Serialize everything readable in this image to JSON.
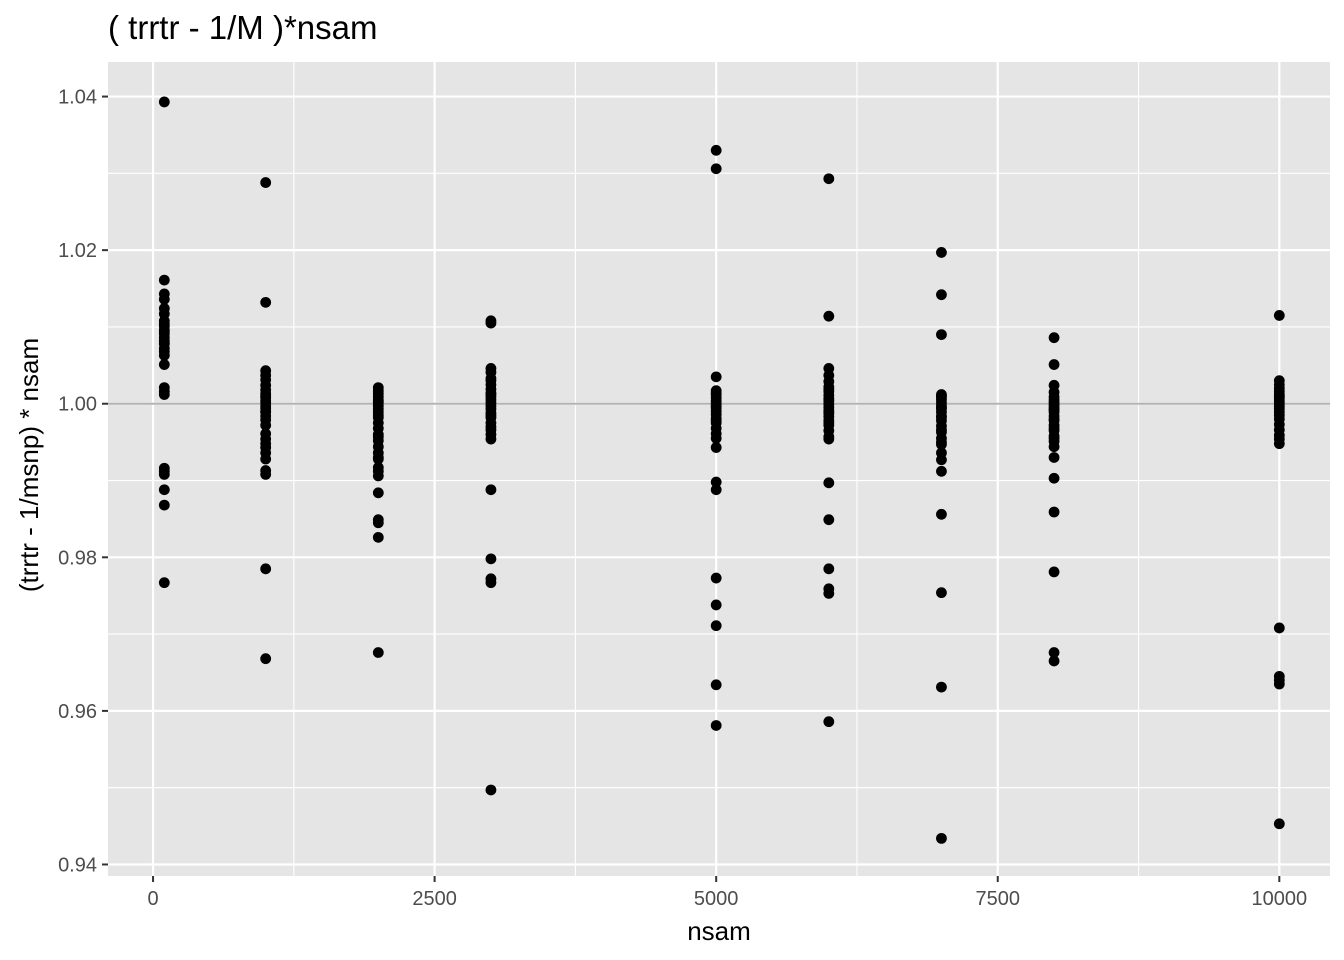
{
  "chart_data": {
    "type": "scatter",
    "title": "( trrtr - 1/M )*nsam",
    "xlabel": "nsam",
    "ylabel": "(trrtr - 1/msnp) * nsam",
    "xlim": [
      -400,
      10450
    ],
    "ylim": [
      0.9385,
      1.0445
    ],
    "x_ticks": [
      {
        "value": 0,
        "label": "0"
      },
      {
        "value": 2500,
        "label": "2500"
      },
      {
        "value": 5000,
        "label": "5000"
      },
      {
        "value": 7500,
        "label": "7500"
      },
      {
        "value": 10000,
        "label": "10000"
      }
    ],
    "y_ticks": [
      {
        "value": 0.94,
        "label": "0.94"
      },
      {
        "value": 0.96,
        "label": "0.96"
      },
      {
        "value": 0.98,
        "label": "0.98"
      },
      {
        "value": 1.0,
        "label": "1.00"
      },
      {
        "value": 1.02,
        "label": "1.02"
      },
      {
        "value": 1.04,
        "label": "1.04"
      }
    ],
    "x_minor_breaks": [
      1250,
      3750,
      6250,
      8750
    ],
    "y_minor_breaks": [
      0.95,
      0.97,
      0.99,
      1.01,
      1.03
    ],
    "reference_line": {
      "y": 1.0,
      "color": "#b3b3b3"
    },
    "colors": {
      "panel": "#e5e5e5",
      "grid": "#ffffff",
      "point": "#000000"
    },
    "series": [
      {
        "name": "points",
        "x": [
          100,
          100,
          100,
          100,
          100,
          100,
          100,
          100,
          100,
          100,
          100,
          100,
          100,
          100,
          100,
          100,
          100,
          100,
          100,
          100,
          100,
          100,
          100,
          100,
          100,
          100,
          100,
          100,
          100,
          1000,
          1000,
          1000,
          1000,
          1000,
          1000,
          1000,
          1000,
          1000,
          1000,
          1000,
          1000,
          1000,
          1000,
          1000,
          1000,
          1000,
          1000,
          1000,
          1000,
          1000,
          1000,
          1000,
          1000,
          1000,
          1000,
          1000,
          1000,
          1000,
          2000,
          2000,
          2000,
          2000,
          2000,
          2000,
          2000,
          2000,
          2000,
          2000,
          2000,
          2000,
          2000,
          2000,
          2000,
          2000,
          2000,
          2000,
          2000,
          2000,
          2000,
          2000,
          2000,
          2000,
          2000,
          2000,
          2000,
          2000,
          2000,
          3000,
          3000,
          3000,
          3000,
          3000,
          3000,
          3000,
          3000,
          3000,
          3000,
          3000,
          3000,
          3000,
          3000,
          3000,
          3000,
          3000,
          3000,
          3000,
          3000,
          3000,
          3000,
          3000,
          3000,
          3000,
          3000,
          3000,
          3000,
          5000,
          5000,
          5000,
          5000,
          5000,
          5000,
          5000,
          5000,
          5000,
          5000,
          5000,
          5000,
          5000,
          5000,
          5000,
          5000,
          5000,
          5000,
          5000,
          5000,
          5000,
          5000,
          5000,
          5000,
          5000,
          5000,
          5000,
          5000,
          6000,
          6000,
          6000,
          6000,
          6000,
          6000,
          6000,
          6000,
          6000,
          6000,
          6000,
          6000,
          6000,
          6000,
          6000,
          6000,
          6000,
          6000,
          6000,
          6000,
          6000,
          6000,
          6000,
          6000,
          6000,
          6000,
          6000,
          6000,
          6000,
          6000,
          7000,
          7000,
          7000,
          7000,
          7000,
          7000,
          7000,
          7000,
          7000,
          7000,
          7000,
          7000,
          7000,
          7000,
          7000,
          7000,
          7000,
          7000,
          7000,
          7000,
          7000,
          7000,
          7000,
          7000,
          7000,
          7000,
          7000,
          7000,
          8000,
          8000,
          8000,
          8000,
          8000,
          8000,
          8000,
          8000,
          8000,
          8000,
          8000,
          8000,
          8000,
          8000,
          8000,
          8000,
          8000,
          8000,
          8000,
          8000,
          8000,
          8000,
          8000,
          8000,
          8000,
          8000,
          8000,
          8000,
          10000,
          10000,
          10000,
          10000,
          10000,
          10000,
          10000,
          10000,
          10000,
          10000,
          10000,
          10000,
          10000,
          10000,
          10000,
          10000,
          10000,
          10000,
          10000,
          10000,
          10000,
          10000,
          10000,
          10000,
          10000,
          10000
        ],
        "y": [
          1.0393,
          1.0161,
          1.0143,
          1.0136,
          1.0124,
          1.0117,
          1.0108,
          1.0101,
          1.0096,
          1.0091,
          1.0086,
          1.0082,
          1.0078,
          1.0072,
          1.0063,
          1.0051,
          1.0021,
          1.0016,
          1.0012,
          0.9916,
          0.9912,
          0.9908,
          0.9888,
          0.9868,
          0.9767,
          1.0104,
          1.0094,
          1.0079,
          1.0068,
          1.0288,
          1.0132,
          1.0043,
          1.0037,
          1.0031,
          1.0024,
          1.0018,
          1.0013,
          1.0008,
          1.0004,
          1.0001,
          0.9997,
          0.9994,
          0.9989,
          0.9984,
          0.9979,
          0.9972,
          0.9961,
          0.9954,
          0.9948,
          0.9943,
          0.9936,
          0.9928,
          0.9913,
          0.9908,
          0.9785,
          0.9668,
          1.001,
          0.999,
          1.0021,
          1.0017,
          1.0013,
          1.0009,
          1.0005,
          1.0001,
          0.9997,
          0.9993,
          0.9989,
          0.9982,
          0.9975,
          0.9968,
          0.9957,
          0.9952,
          0.9944,
          0.9936,
          0.9928,
          0.9917,
          0.9912,
          0.9906,
          0.9884,
          0.9849,
          0.9845,
          0.9826,
          0.9676,
          1.0003,
          0.9985,
          0.996,
          0.993,
          1.0108,
          1.0105,
          1.0046,
          1.0041,
          1.0033,
          1.0025,
          1.0019,
          1.0014,
          1.0009,
          1.0005,
          1.0001,
          0.9997,
          0.9993,
          0.9988,
          0.9982,
          0.9975,
          0.9966,
          0.996,
          0.9954,
          0.9888,
          0.9798,
          0.9772,
          0.9767,
          0.9497,
          1.003,
          1.0012,
          0.9985,
          0.997,
          1.033,
          1.0306,
          1.0035,
          1.0017,
          1.0012,
          1.0008,
          1.0004,
          1.0001,
          0.9998,
          0.9994,
          0.999,
          0.9986,
          0.9981,
          0.9975,
          0.9968,
          0.9961,
          0.9955,
          0.9943,
          0.9898,
          0.9888,
          0.9773,
          0.9738,
          0.9711,
          0.9634,
          0.9581,
          1.0014,
          0.9996,
          0.9978,
          1.0293,
          1.0114,
          1.0046,
          1.0037,
          1.0029,
          1.0022,
          1.0016,
          1.0011,
          1.0007,
          1.0003,
          0.9999,
          0.9995,
          0.9991,
          0.9987,
          0.9983,
          0.9978,
          0.9972,
          0.9965,
          0.9957,
          0.9954,
          0.9897,
          0.9849,
          0.9785,
          0.9759,
          0.9753,
          0.9586,
          1.0019,
          1.0005,
          0.9989,
          0.9975,
          1.0197,
          1.0142,
          1.009,
          1.0012,
          1.0008,
          1.0005,
          1.0001,
          0.9997,
          0.9993,
          0.9989,
          0.9984,
          0.9978,
          0.9971,
          0.9963,
          0.9955,
          0.9947,
          0.9936,
          0.9927,
          0.9912,
          0.9856,
          0.9754,
          0.9631,
          0.9434,
          1.001,
          0.9995,
          0.9982,
          0.9966,
          0.995,
          1.0086,
          1.0051,
          1.0024,
          1.0009,
          1.0005,
          1.0002,
          0.9999,
          0.9996,
          0.9993,
          0.9989,
          0.9984,
          0.9978,
          0.9972,
          0.9965,
          0.9958,
          0.9951,
          0.9944,
          0.993,
          0.9903,
          0.9859,
          0.9781,
          0.9676,
          0.9665,
          1.0015,
          0.9992,
          0.998,
          0.9968,
          0.9955,
          1.0115,
          1.003,
          1.0025,
          1.002,
          1.0016,
          1.0012,
          1.0008,
          1.0005,
          1.0002,
          0.9999,
          0.9996,
          0.9993,
          0.9989,
          0.9985,
          0.998,
          0.9973,
          0.9966,
          0.9959,
          0.9954,
          0.9948,
          0.9708,
          0.9645,
          0.964,
          0.9635,
          0.9453,
          1.001
        ]
      }
    ]
  }
}
